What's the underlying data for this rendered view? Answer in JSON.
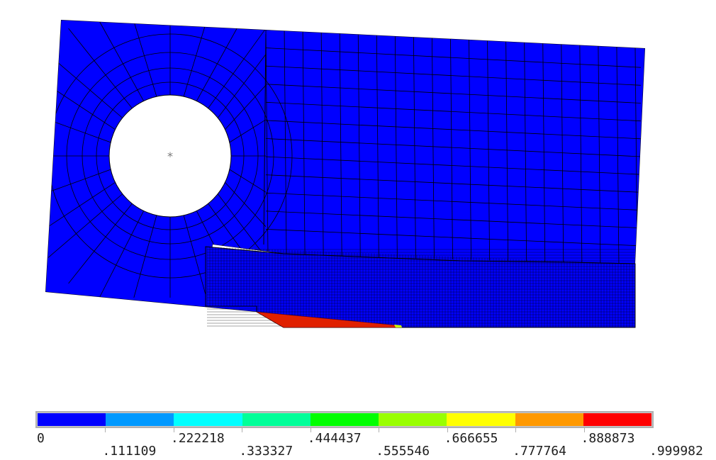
{
  "colors": {
    "background": "#ffffff",
    "body": "#0000ff",
    "mesh_line": "#000000",
    "hole": "#ffffff",
    "contact_strip": "#e02000",
    "frame": "#b0b0b0"
  },
  "legend": {
    "colors": [
      "#0000ff",
      "#0099ff",
      "#00ffff",
      "#00ff99",
      "#00ff00",
      "#99ff00",
      "#ffff00",
      "#ff9900",
      "#ff0000"
    ],
    "tick_labels": [
      "0",
      ".111109",
      ".222218",
      ".333327",
      ".444437",
      ".555546",
      ".666655",
      ".777764",
      ".888873",
      ".999982"
    ]
  },
  "marker": {
    "symbol": "*"
  }
}
